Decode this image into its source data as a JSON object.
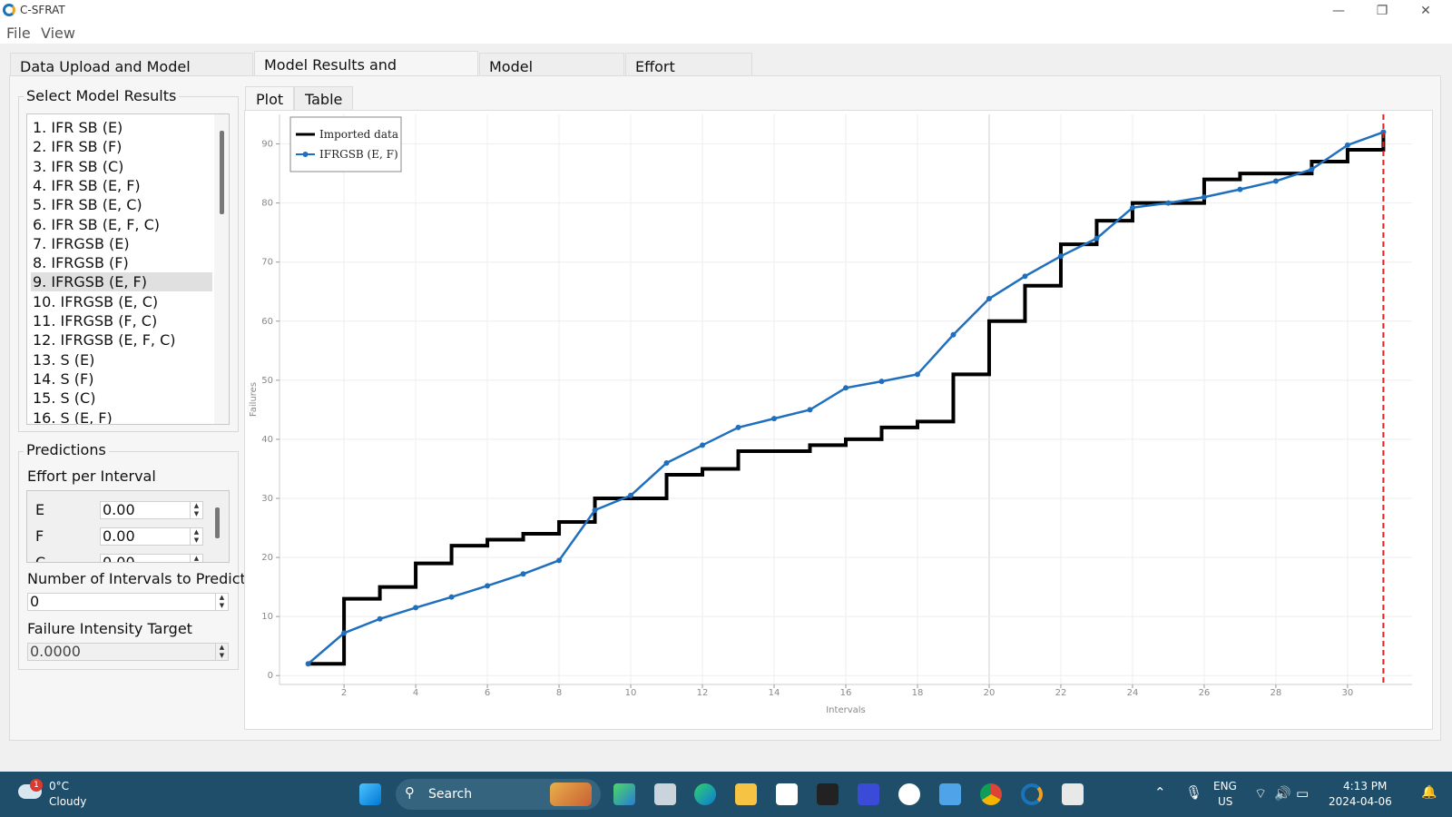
{
  "window": {
    "title": "C-SFRAT",
    "controls": {
      "minimize": "—",
      "restore": "❐",
      "close": "✕"
    }
  },
  "menu": [
    "File",
    "View"
  ],
  "tabs": [
    "Data Upload and Model Selection",
    "Model Results and Predictions",
    "Model Comparison",
    "Effort Allocation"
  ],
  "active_tab": 1,
  "left_panel": {
    "select_title": "Select Model Results",
    "models": [
      "1. IFR SB (E)",
      "2. IFR SB (F)",
      "3. IFR SB (C)",
      "4. IFR SB (E, F)",
      "5. IFR SB (E, C)",
      "6. IFR SB (E, F, C)",
      "7. IFRGSB (E)",
      "8. IFRGSB (F)",
      "9. IFRGSB (E, F)",
      "10. IFRGSB (E, C)",
      "11. IFRGSB (F, C)",
      "12. IFRGSB (E, F, C)",
      "13. S (E)",
      "14. S (F)",
      "15. S (C)",
      "16. S (E, F)"
    ],
    "selected_model": 8,
    "predictions_title": "Predictions",
    "effort_label": "Effort per Interval",
    "effort_rows": [
      {
        "name": "E",
        "value": "0.00"
      },
      {
        "name": "F",
        "value": "0.00"
      },
      {
        "name": "C",
        "value": "0.00"
      }
    ],
    "intervals_label": "Number of Intervals to Predict",
    "intervals_value": "0",
    "intensity_label": "Failure Intensity Target",
    "intensity_value": "0.0000"
  },
  "plot_tabs": [
    "Plot",
    "Table"
  ],
  "active_plot_tab": 0,
  "chart_data": {
    "type": "line",
    "xlabel": "Intervals",
    "ylabel": "Failures",
    "xlim": [
      0.2,
      31.8
    ],
    "ylim": [
      -1.5,
      95
    ],
    "x_ticks": [
      2,
      4,
      6,
      8,
      10,
      12,
      14,
      16,
      18,
      20,
      22,
      24,
      26,
      28,
      30
    ],
    "y_ticks": [
      0,
      10,
      20,
      30,
      40,
      50,
      60,
      70,
      80,
      90
    ],
    "grid": true,
    "legend": "top-left",
    "prediction_line_x": 31,
    "series": [
      {
        "name": "Imported data",
        "style": "step",
        "color": "#000000",
        "x": [
          1,
          2,
          3,
          4,
          5,
          6,
          7,
          8,
          9,
          10,
          11,
          12,
          13,
          14,
          15,
          16,
          17,
          18,
          19,
          20,
          21,
          22,
          23,
          24,
          25,
          26,
          27,
          28,
          29,
          30,
          31
        ],
        "values": [
          2,
          13,
          15,
          19,
          22,
          23,
          24,
          26,
          30,
          30,
          34,
          35,
          38,
          38,
          39,
          40,
          42,
          43,
          51,
          60,
          66,
          73,
          77,
          80,
          80,
          84,
          85,
          85,
          87,
          89,
          92
        ]
      },
      {
        "name": "IFRGSB (E, F)",
        "style": "line-markers",
        "color": "#1f6fbf",
        "x": [
          1,
          2,
          3,
          4,
          5,
          6,
          7,
          8,
          9,
          10,
          11,
          12,
          13,
          14,
          15,
          16,
          17,
          18,
          19,
          20,
          21,
          22,
          23,
          24,
          25,
          26,
          27,
          28,
          29,
          30,
          31
        ],
        "values": [
          2,
          7.2,
          9.6,
          11.5,
          13.3,
          15.2,
          17.2,
          19.5,
          28.0,
          30.5,
          36.0,
          39.0,
          42.0,
          43.5,
          45.0,
          48.7,
          49.8,
          51.0,
          57.7,
          63.8,
          67.6,
          71.0,
          74.0,
          79.2,
          80.0,
          81.0,
          82.3,
          83.7,
          85.7,
          89.8,
          92.0
        ]
      }
    ]
  },
  "taskbar": {
    "weather_temp": "0°C",
    "weather_desc": "Cloudy",
    "weather_badge": "1",
    "search_label": "Search",
    "lang": "ENG",
    "region": "US",
    "time": "4:13 PM",
    "date": "2024-04-06"
  }
}
